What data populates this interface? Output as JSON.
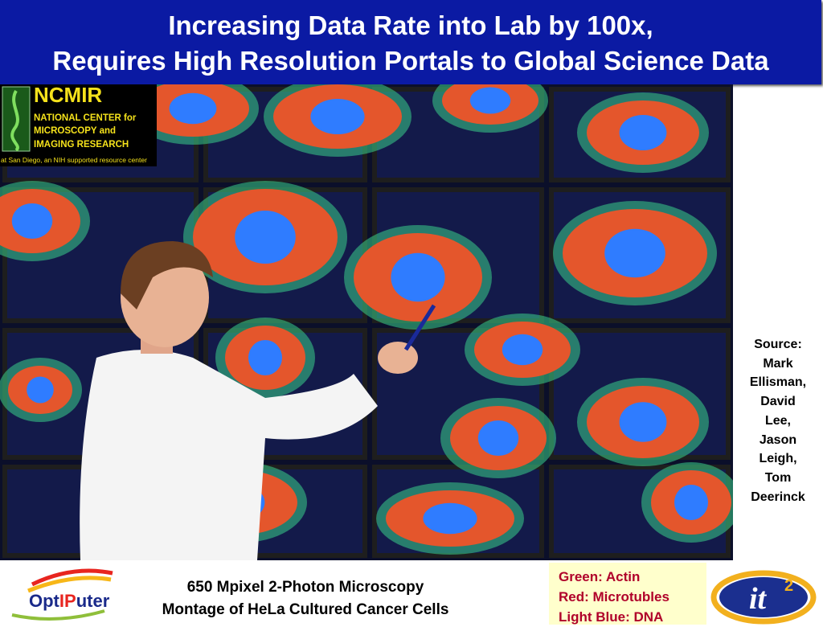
{
  "header": {
    "title_lines": [
      "Increasing Data Rate into Lab by 100x,",
      "Requires High Resolution Portals to Global Science Data"
    ]
  },
  "ncmir_logo": {
    "name": "NCMIR",
    "lines": [
      "NATIONAL CENTER for",
      "MICROSCOPY and",
      "IMAGING RESEARCH"
    ],
    "footer": "at San Diego, an NIH supported resource center"
  },
  "source": {
    "lines": [
      "Source:",
      "Mark",
      "Ellisman,",
      "David",
      "Lee,",
      "Jason",
      "Leigh,",
      "Tom",
      "Deerinck"
    ]
  },
  "caption": {
    "lines": [
      "650 Mpixel 2-Photon Microscopy",
      "Montage of HeLa Cultured Cancer Cells"
    ]
  },
  "legend": {
    "lines": [
      "Green: Actin",
      "Red: Microtubles",
      "Light Blue: DNA"
    ]
  },
  "logos": {
    "optiputer_parts": [
      "Opt",
      "IP",
      "uter"
    ],
    "it2": "it",
    "it2_sup": "2"
  }
}
